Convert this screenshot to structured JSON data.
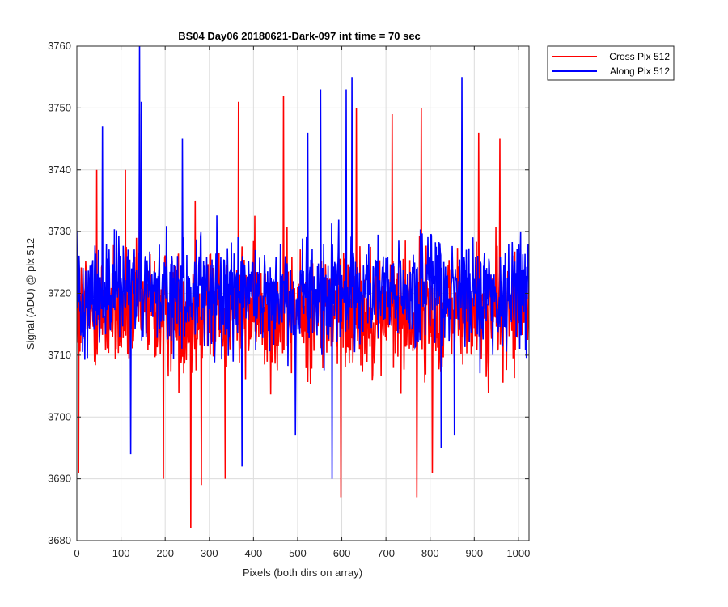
{
  "chart_data": {
    "type": "line",
    "title": "BS04 Day06 20180621-Dark-097 int time = 70 sec",
    "xlabel": "Pixels (both dirs on array)",
    "ylabel": "Signal (ADU) @ pix 512",
    "xlim": [
      0,
      1024
    ],
    "ylim": [
      3680,
      3760
    ],
    "xticks": [
      0,
      100,
      200,
      300,
      400,
      500,
      600,
      700,
      800,
      900,
      1000
    ],
    "yticks": [
      3680,
      3690,
      3700,
      3710,
      3720,
      3730,
      3740,
      3750,
      3760
    ],
    "grid": true,
    "legend_position": "outside-top-right",
    "series": [
      {
        "name": "Cross Pix 512",
        "color": "#ff0000",
        "sample_points": [
          [
            0,
            3712
          ],
          [
            4,
            3691
          ],
          [
            45,
            3740
          ],
          [
            110,
            3740
          ],
          [
            142,
            3749
          ],
          [
            196,
            3690
          ],
          [
            258,
            3682
          ],
          [
            268,
            3735
          ],
          [
            282,
            3689
          ],
          [
            336,
            3690
          ],
          [
            366,
            3751
          ],
          [
            468,
            3752
          ],
          [
            598,
            3687
          ],
          [
            633,
            3750
          ],
          [
            714,
            3749
          ],
          [
            770,
            3687
          ],
          [
            780,
            3750
          ],
          [
            805,
            3691
          ],
          [
            910,
            3746
          ],
          [
            958,
            3745
          ],
          [
            1024,
            3725
          ]
        ],
        "noise": {
          "mean": 3717,
          "spread": 10,
          "count": 1025
        }
      },
      {
        "name": "Along Pix 512",
        "color": "#0000ff",
        "sample_points": [
          [
            0,
            3730
          ],
          [
            58,
            3747
          ],
          [
            122,
            3694
          ],
          [
            142,
            3760
          ],
          [
            146,
            3751
          ],
          [
            239,
            3745
          ],
          [
            374,
            3692
          ],
          [
            495,
            3697
          ],
          [
            523,
            3746
          ],
          [
            552,
            3753
          ],
          [
            578,
            3690
          ],
          [
            610,
            3753
          ],
          [
            623,
            3755
          ],
          [
            825,
            3695
          ],
          [
            855,
            3697
          ],
          [
            872,
            3755
          ],
          [
            1024,
            3720
          ]
        ],
        "noise": {
          "mean": 3720,
          "spread": 9,
          "count": 1025
        }
      }
    ]
  }
}
